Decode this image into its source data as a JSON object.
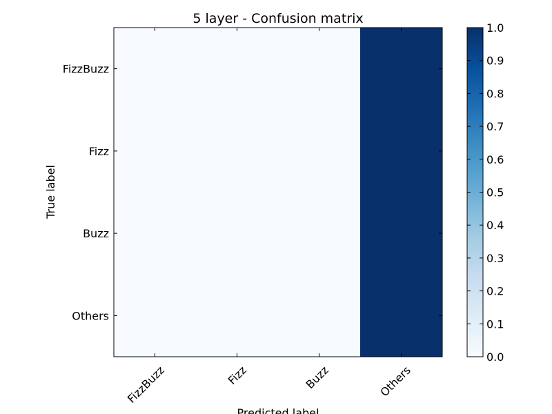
{
  "chart_data": {
    "type": "heatmap",
    "title": "5 layer - Confusion matrix",
    "xlabel": "Predicted label",
    "ylabel": "True label",
    "x_categories": [
      "FizzBuzz",
      "Fizz",
      "Buzz",
      "Others"
    ],
    "y_categories": [
      "FizzBuzz",
      "Fizz",
      "Buzz",
      "Others"
    ],
    "values": [
      [
        0,
        0,
        0,
        1
      ],
      [
        0,
        0,
        0,
        1
      ],
      [
        0,
        0,
        0,
        1
      ],
      [
        0,
        0,
        0,
        1
      ]
    ],
    "colormap": "Blues",
    "colorbar": {
      "range": [
        0,
        1
      ],
      "ticks": [
        "0.0",
        "0.1",
        "0.2",
        "0.3",
        "0.4",
        "0.5",
        "0.6",
        "0.7",
        "0.8",
        "0.9",
        "1.0"
      ]
    },
    "colors": {
      "low": "#f7fbff",
      "high": "#08306b"
    }
  }
}
